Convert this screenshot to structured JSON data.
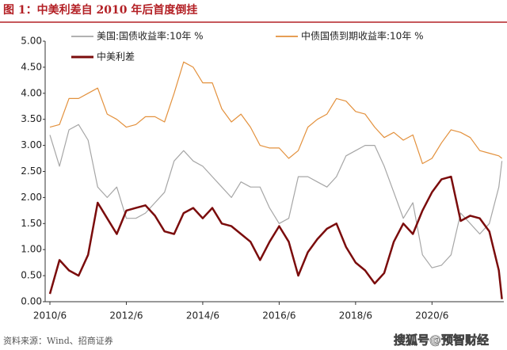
{
  "chart_data": {
    "type": "line",
    "title": "图 1：中美利差自 2010 年后首度倒挂",
    "x": [
      2010.42,
      2010.67,
      2010.92,
      2011.17,
      2011.42,
      2011.67,
      2011.92,
      2012.17,
      2012.42,
      2012.67,
      2012.92,
      2013.17,
      2013.42,
      2013.67,
      2013.92,
      2014.17,
      2014.42,
      2014.67,
      2014.92,
      2015.17,
      2015.42,
      2015.67,
      2015.92,
      2016.17,
      2016.42,
      2016.67,
      2016.92,
      2017.17,
      2017.42,
      2017.67,
      2017.92,
      2018.17,
      2018.42,
      2018.67,
      2018.92,
      2019.17,
      2019.42,
      2019.67,
      2019.92,
      2020.17,
      2020.42,
      2020.67,
      2020.92,
      2021.17,
      2021.42,
      2021.67,
      2021.92,
      2022.17,
      2022.25
    ],
    "series": [
      {
        "name": "美国:国债收益率:10年 %",
        "color": "#a6a6a6",
        "width": 1.2,
        "values": [
          3.2,
          2.6,
          3.3,
          3.4,
          3.1,
          2.2,
          2.0,
          2.2,
          1.6,
          1.6,
          1.7,
          1.9,
          2.1,
          2.7,
          2.9,
          2.7,
          2.6,
          2.4,
          2.2,
          2.0,
          2.3,
          2.2,
          2.2,
          1.8,
          1.5,
          1.6,
          2.4,
          2.4,
          2.3,
          2.2,
          2.4,
          2.8,
          2.9,
          3.0,
          3.0,
          2.6,
          2.1,
          1.6,
          1.9,
          0.9,
          0.65,
          0.7,
          0.9,
          1.7,
          1.5,
          1.3,
          1.5,
          2.2,
          2.7
        ]
      },
      {
        "name": "中债国债到期收益率:10年 %",
        "color": "#e3913d",
        "width": 1.2,
        "values": [
          3.35,
          3.4,
          3.9,
          3.9,
          4.0,
          4.1,
          3.6,
          3.5,
          3.35,
          3.4,
          3.55,
          3.55,
          3.45,
          4.0,
          4.6,
          4.5,
          4.2,
          4.2,
          3.7,
          3.45,
          3.6,
          3.35,
          3.0,
          2.95,
          2.95,
          2.75,
          2.9,
          3.35,
          3.5,
          3.6,
          3.9,
          3.85,
          3.65,
          3.6,
          3.35,
          3.15,
          3.25,
          3.1,
          3.2,
          2.65,
          2.75,
          3.05,
          3.3,
          3.25,
          3.15,
          2.9,
          2.85,
          2.8,
          2.75
        ]
      },
      {
        "name": "中美利差",
        "color": "#7b0c0c",
        "width": 2.5,
        "values": [
          0.15,
          0.8,
          0.6,
          0.5,
          0.9,
          1.9,
          1.6,
          1.3,
          1.75,
          1.8,
          1.85,
          1.65,
          1.35,
          1.3,
          1.7,
          1.8,
          1.6,
          1.8,
          1.5,
          1.45,
          1.3,
          1.15,
          0.8,
          1.15,
          1.45,
          1.15,
          0.5,
          0.95,
          1.2,
          1.4,
          1.5,
          1.05,
          0.75,
          0.6,
          0.35,
          0.55,
          1.15,
          1.5,
          1.3,
          1.75,
          2.1,
          2.35,
          2.4,
          1.55,
          1.65,
          1.6,
          1.35,
          0.6,
          0.05
        ]
      }
    ],
    "xlim": [
      2010.42,
      2022.3
    ],
    "xticks": [
      {
        "value": 2010.42,
        "label": "2010/6"
      },
      {
        "value": 2012.42,
        "label": "2012/6"
      },
      {
        "value": 2014.42,
        "label": "2014/6"
      },
      {
        "value": 2016.42,
        "label": "2016/6"
      },
      {
        "value": 2018.42,
        "label": "2018/6"
      },
      {
        "value": 2020.42,
        "label": "2020/6"
      }
    ],
    "ylim": [
      0,
      5
    ],
    "yticks": [
      {
        "value": 0,
        "label": "0.00"
      },
      {
        "value": 0.5,
        "label": "0.50"
      },
      {
        "value": 1,
        "label": "1.00"
      },
      {
        "value": 1.5,
        "label": "1.50"
      },
      {
        "value": 2,
        "label": "2.00"
      },
      {
        "value": 2.5,
        "label": "2.50"
      },
      {
        "value": 3,
        "label": "3.00"
      },
      {
        "value": 3.5,
        "label": "3.50"
      },
      {
        "value": 4,
        "label": "4.00"
      },
      {
        "value": 4.5,
        "label": "4.50"
      },
      {
        "value": 5,
        "label": "5.00"
      }
    ],
    "grid": false
  },
  "source": "资料来源：Wind、招商证券",
  "watermark": "搜狐号@预智财经"
}
